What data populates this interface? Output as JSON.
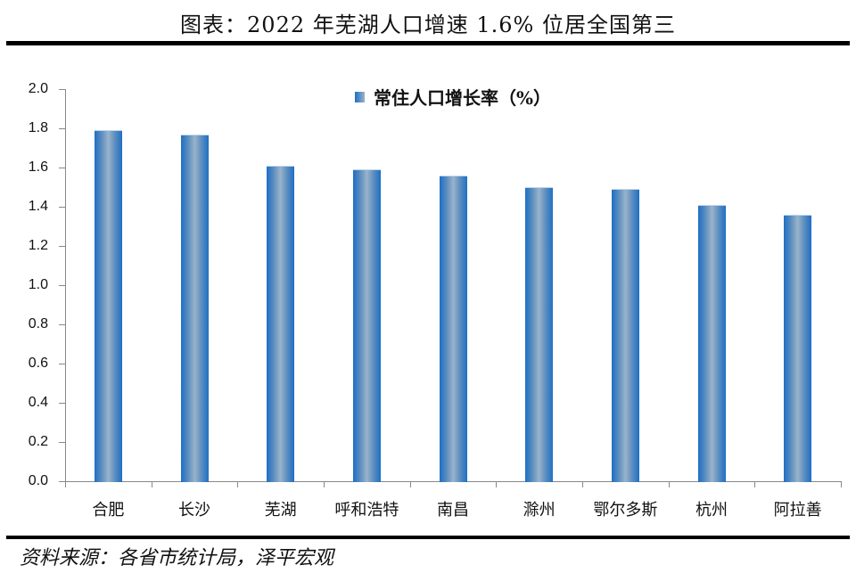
{
  "title": "图表：2022 年芜湖人口增速 1.6% 位居全国第三",
  "source": "资料来源：各省市统计局，泽平宏观",
  "legend": {
    "label": "常住人口增长率（%）",
    "color": "#1f6fc4"
  },
  "yaxis": {
    "ticks": [
      "0.0",
      "0.2",
      "0.4",
      "0.6",
      "0.8",
      "1.0",
      "1.2",
      "1.4",
      "1.6",
      "1.8",
      "2.0"
    ]
  },
  "chart_data": {
    "type": "bar",
    "title": "图表：2022 年芜湖人口增速 1.6% 位居全国第三",
    "xlabel": "",
    "ylabel": "",
    "categories": [
      "合肥",
      "长沙",
      "芜湖",
      "呼和浩特",
      "南昌",
      "滁州",
      "鄂尔多斯",
      "杭州",
      "阿拉善"
    ],
    "series": [
      {
        "name": "常住人口增长率（%）",
        "values": [
          1.79,
          1.77,
          1.61,
          1.59,
          1.56,
          1.5,
          1.49,
          1.41,
          1.36
        ]
      }
    ],
    "ylim": [
      0,
      2.0
    ],
    "yticks": [
      0.0,
      0.2,
      0.4,
      0.6,
      0.8,
      1.0,
      1.2,
      1.4,
      1.6,
      1.8,
      2.0
    ],
    "grid": false,
    "legend_position": "top-center",
    "bar_color": "#1f6fc4"
  }
}
